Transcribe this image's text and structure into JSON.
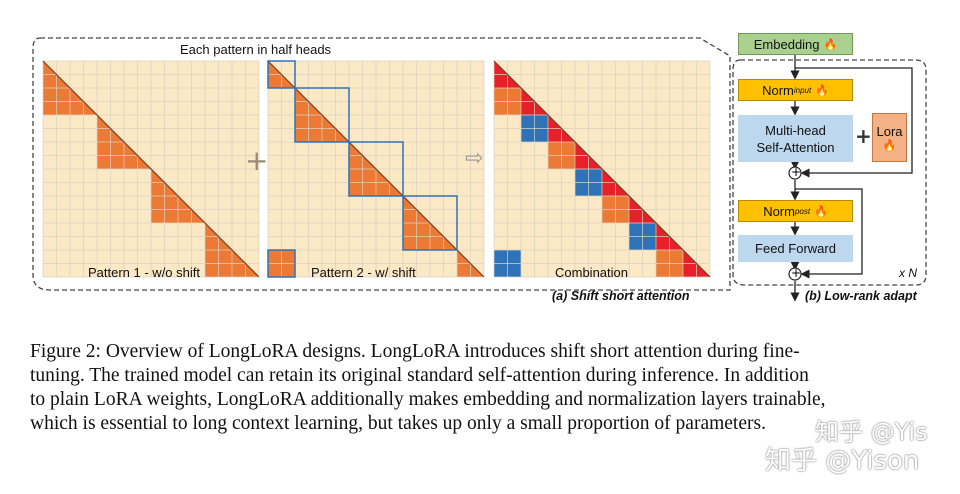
{
  "figure": {
    "top_label": "Each pattern in half heads",
    "pattern1_label": "Pattern 1 - w/o shift",
    "pattern2_label": "Pattern 2 - w/ shift",
    "combination_label": "Combination",
    "subcaption_a": "(a) Shift short attention",
    "subcaption_b": "(b) Low-rank adapt",
    "plus_symbol": "+",
    "arrow_symbol": "⇨",
    "repeat_label": "x N"
  },
  "architecture": {
    "embedding": "Embedding",
    "norm_input_main": "Norm",
    "norm_input_sub": "input",
    "attention_line1": "Multi-head",
    "attention_line2": "Self-Attention",
    "lora": "Lora",
    "norm_post_main": "Norm",
    "norm_post_sub": "post",
    "feed_forward": "Feed Forward",
    "flame_icon": "🔥",
    "add_symbol": "+"
  },
  "caption": {
    "line1": "Figure 2: Overview of LongLoRA designs. LongLoRA introduces shift short attention during fine-",
    "line2": "tuning. The trained model can retain its original standard self-attention during inference. In addition",
    "line3": "to plain LoRA weights, LongLoRA additionally makes embedding and normalization layers trainable,",
    "line4": "which is essential to long context learning, but takes up only a small proportion of parameters."
  },
  "watermark": {
    "text1": "知乎 @Yis",
    "text2": "知乎 @Yison"
  },
  "colors": {
    "grid_bg": "#fbe8c4",
    "grid_line": "#c9c9c9",
    "orange": "#ec7a35",
    "red": "#e8202a",
    "blue": "#2e73b8",
    "embedding_fill": "#a9d08e",
    "norm_fill": "#ffc000",
    "attn_fill": "#bdd7ee",
    "lora_fill": "#f4b183"
  }
}
